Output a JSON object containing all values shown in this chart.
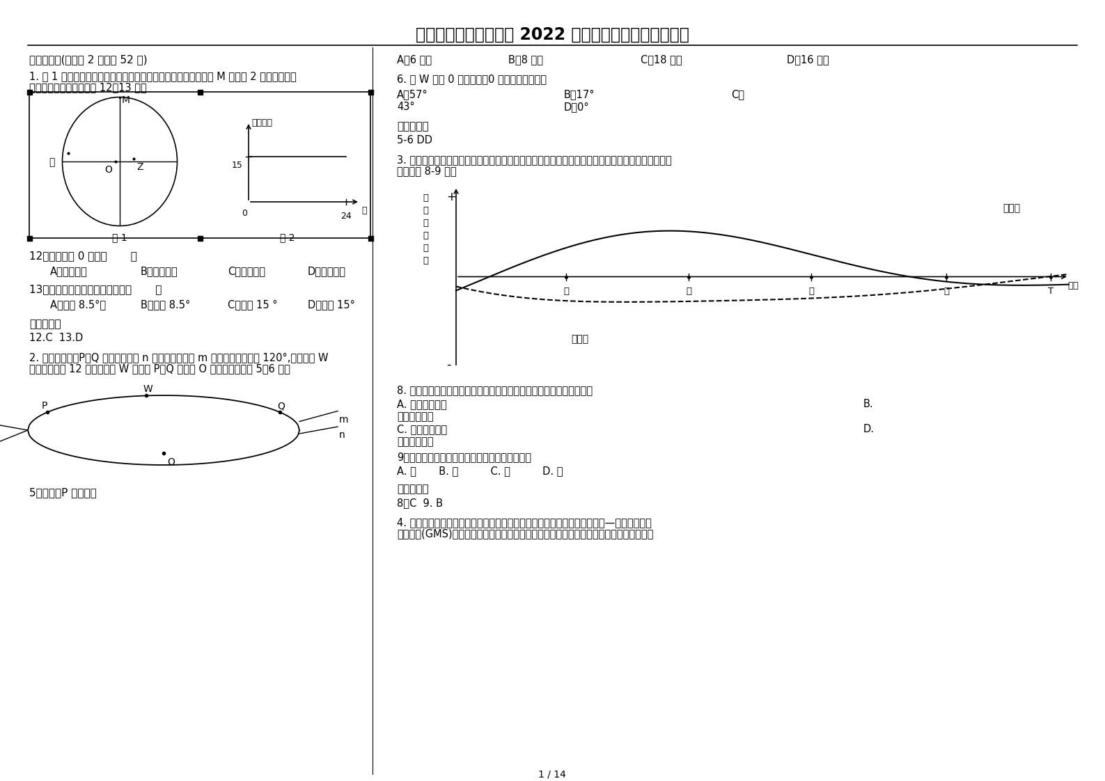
{
  "title": "陕西省西安市大学附中 2022 年高三地理模拟试卷含解析",
  "background_color": "#ffffff",
  "text_color": "#000000",
  "section1": "一、选择题(每小题 2 分，共 52 分)",
  "q1_line1": "1. 图 1 为某日以极点附近某地为中心的半球图，甲地地方时早于 M 地。图 2 为乙地当日太",
  "q1_line2": "阳高度变化图。读图完成 12～13 题。",
  "q12_text": "12．甲地位于 0 地的（       ）",
  "q13_text": "13．此日，太阳直射点的纬度是（       ）",
  "ans1_header": "参考答案：",
  "ans1_text": "12.C  13.D",
  "q2_line1": "2. 如下图所示：P、Q 为某日晨昏线 n 与北半球某纬线 m 的交点，经度差为 120°,已知此时 W",
  "q2_line2": "点的地方时为 12 点此日以后 W 点将向 P、Q 的中点 O 移动，据此完成 5～6 题。",
  "q5_text": "5．该日，P 的夜长是",
  "q6_text": "6. 当 W 点与 0 点重合时，0 点正午太阳高度为",
  "ans2_header": "参考答案：",
  "ans2_text": "5-6 DD",
  "q3_line1": "3. 城市核心区和边缘区都是城市地域的组成部分，下图示意城市核心区和边缘区人口变化的城市化模",
  "q3_line2": "型。完成 8-9 题。",
  "q8_text": "8. 为迅速缓解图中甲时间点之前城市核心区的环境问题，采取的措施有",
  "q9_text": "9．该城市化模型中，逆城市化阶段开始的时间是",
  "ans3_header": "参考答案：",
  "ans3_text": "8．C  9. B",
  "q4_line1": "4. 在国际政治多极化、世界经济全球化和区域化迅速发展的推动下，澜沧江—湄公河次区域",
  "q4_line2": "经济合作(GMS)已成为亚太地区经济、贸易及投资的新热点。它建立在平等、互信、利的基",
  "page_num": "1 / 14"
}
